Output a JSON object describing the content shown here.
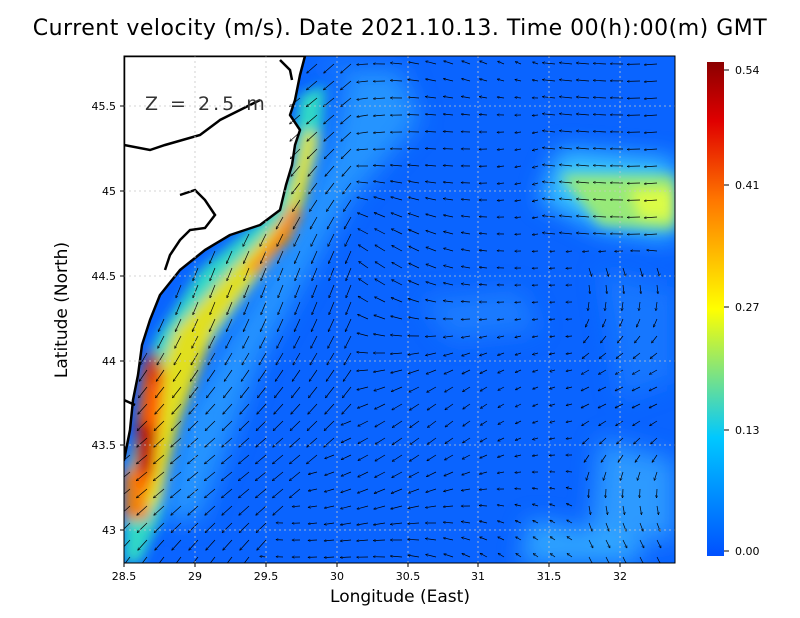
{
  "title": "Current velocity (m/s). Date 2021.10.13. Time 00(h):00(m) GMT",
  "depth_label": "Z = 2.5 m",
  "xlabel": "Longitude (East)",
  "ylabel": "Latitude (North)",
  "x_ticks": [
    "28.5",
    "29",
    "29.5",
    "30",
    "30.5",
    "31",
    "31.5",
    "32"
  ],
  "y_ticks": [
    "43",
    "43.5",
    "44",
    "44.5",
    "45",
    "45.5"
  ],
  "colorbar_ticks": [
    "0.00",
    "0.13",
    "0.27",
    "0.41",
    "0.54"
  ],
  "map": {
    "lon_range": [
      28.5,
      32.45
    ],
    "lat_range": [
      42.8,
      45.8
    ],
    "colorscale": [
      "#0050ff",
      "#00c8ff",
      "#ffff00",
      "#ff7700",
      "#c80000",
      "#8b0000"
    ],
    "colorbar_range": [
      0.0,
      0.54
    ],
    "land_color": "#ffffff",
    "coast_color": "#000000"
  }
}
